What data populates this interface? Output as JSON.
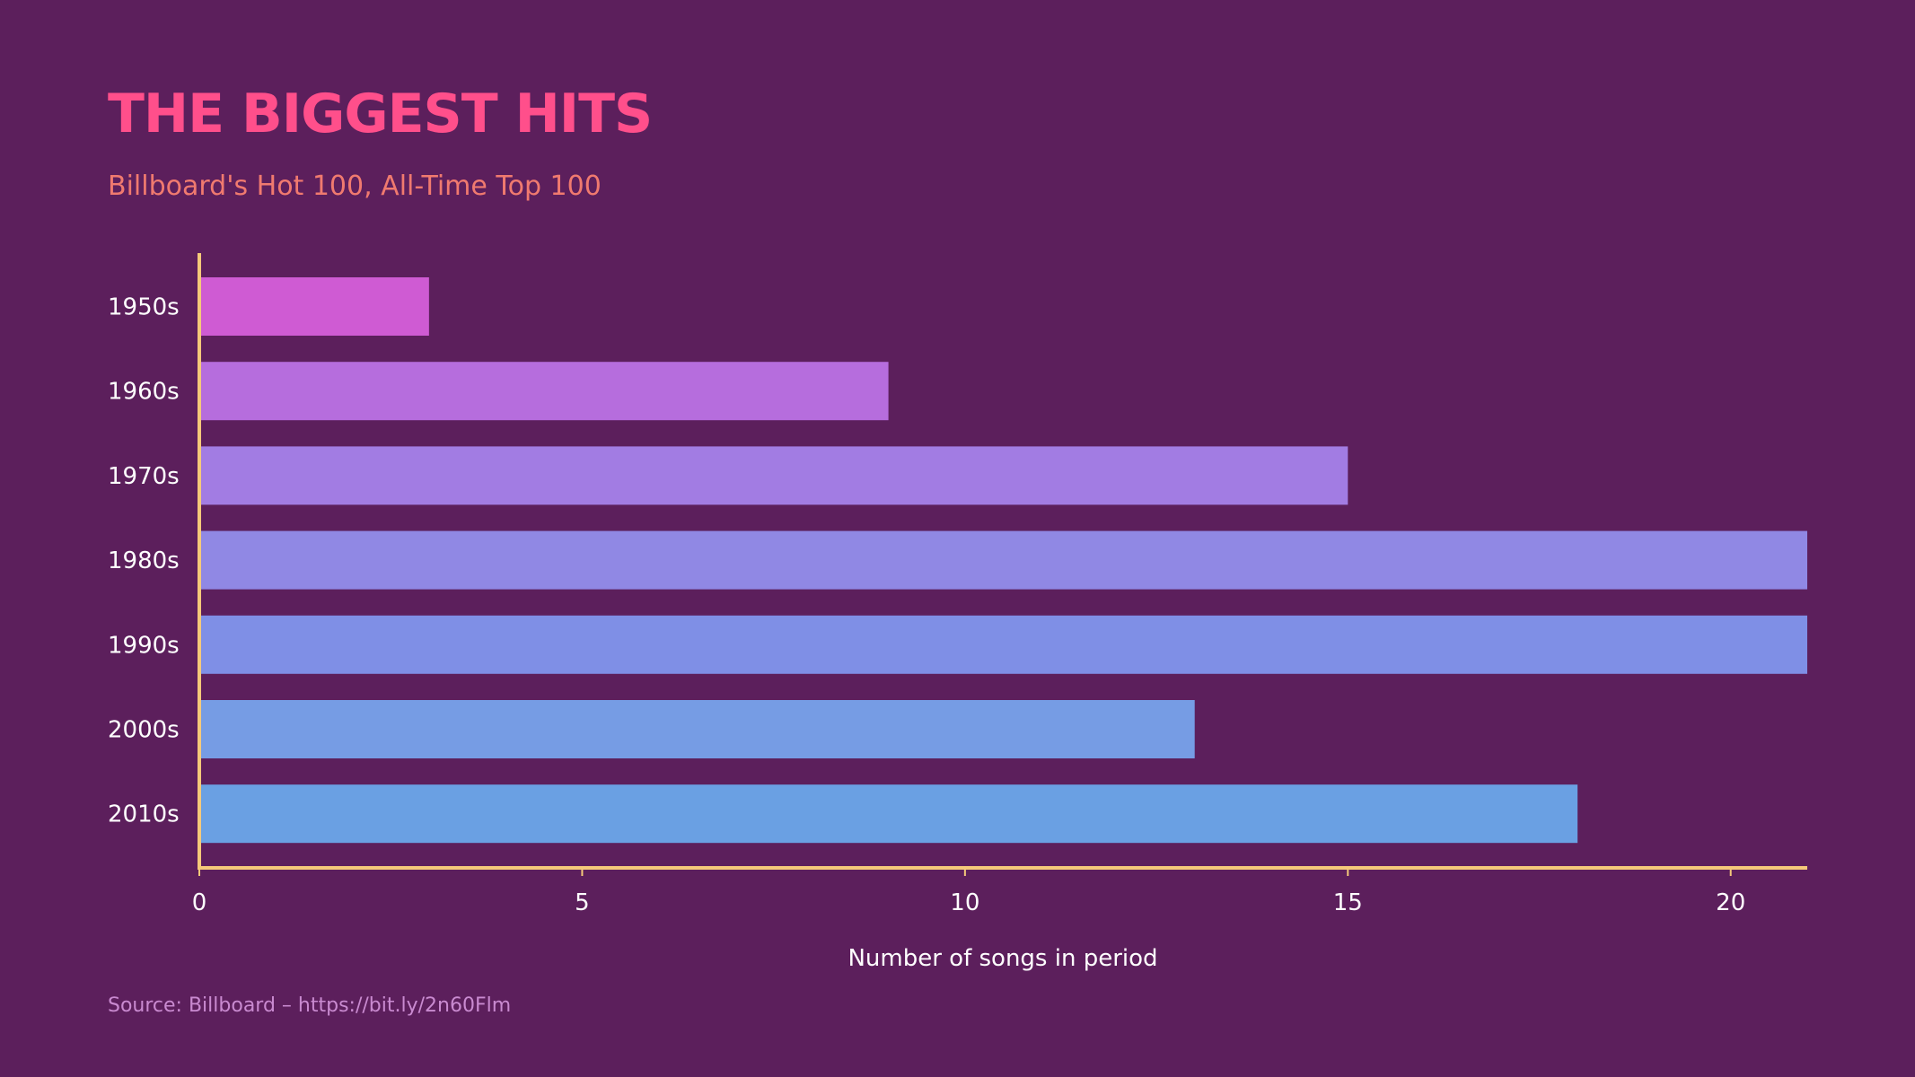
{
  "chart_data": {
    "type": "bar",
    "orientation": "horizontal",
    "title": "THE BIGGEST HITS",
    "subtitle": "Billboard's Hot 100, All-Time Top 100",
    "categories": [
      "1950s",
      "1960s",
      "1970s",
      "1980s",
      "1990s",
      "2000s",
      "2010s"
    ],
    "values": [
      3,
      9,
      15,
      21,
      21,
      13,
      18
    ],
    "bar_colors": [
      "#cf5bd3",
      "#b66ddd",
      "#a27ce3",
      "#9088e4",
      "#7f8fe6",
      "#769ce4",
      "#6aa0e3"
    ],
    "xlabel": "Number of songs in period",
    "ylabel": "",
    "xlim": [
      0,
      21
    ],
    "xticks": [
      "0",
      "5",
      "10",
      "15",
      "20"
    ],
    "grid": false,
    "source": "Source: Billboard – https://bit.ly/2n60Flm",
    "colors": {
      "background": "#5c1f5c",
      "title": "#ff4f8b",
      "subtitle": "#f07a6f",
      "axis": "#f5c97a"
    }
  }
}
